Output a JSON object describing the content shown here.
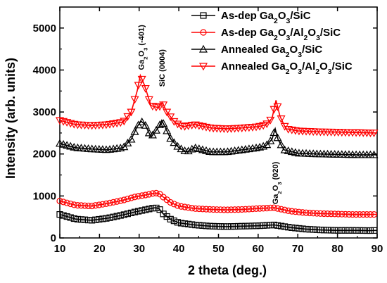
{
  "chart_data": {
    "type": "line",
    "xlabel": "2 theta (deg.)",
    "ylabel": "Intensity (arb. units)",
    "xlim": [
      10,
      90
    ],
    "ylim": [
      0,
      5500
    ],
    "xticks": [
      "10",
      "20",
      "30",
      "40",
      "50",
      "60",
      "70",
      "80",
      "90"
    ],
    "yticks": [
      "0",
      "1000",
      "2000",
      "3000",
      "4000",
      "5000"
    ],
    "grid": false,
    "legend_position": "top-right",
    "colors": {
      "black": "#000000",
      "red": "#ff0000"
    },
    "series": [
      {
        "name": "As-dep Ga2O3/SiC",
        "legend_parts": [
          [
            "As-dep Ga",
            ""
          ],
          [
            "2",
            "sub"
          ],
          [
            "O",
            ""
          ],
          [
            "3",
            "sub"
          ],
          [
            "/SiC",
            ""
          ]
        ],
        "color": "#000000",
        "marker": "square",
        "x": [
          10,
          14,
          18,
          22,
          26,
          29,
          32,
          34,
          35,
          36,
          38,
          40,
          44,
          48,
          52,
          56,
          60,
          64,
          68,
          72,
          76,
          80,
          84,
          88,
          90
        ],
        "y": [
          560,
          450,
          420,
          470,
          550,
          620,
          680,
          720,
          700,
          580,
          440,
          360,
          310,
          280,
          270,
          280,
          290,
          310,
          250,
          210,
          190,
          180,
          180,
          175,
          180
        ]
      },
      {
        "name": "As-dep Ga2O3/Al2O3/SiC",
        "legend_parts": [
          [
            "As-dep Ga",
            ""
          ],
          [
            "2",
            "sub"
          ],
          [
            "O",
            ""
          ],
          [
            "3",
            "sub"
          ],
          [
            "/Al",
            ""
          ],
          [
            "2",
            "sub"
          ],
          [
            "O",
            ""
          ],
          [
            "3",
            "sub"
          ],
          [
            "/SiC",
            ""
          ]
        ],
        "color": "#ff0000",
        "marker": "circle",
        "x": [
          10,
          14,
          18,
          22,
          26,
          29,
          32,
          34,
          35,
          36,
          38,
          40,
          44,
          48,
          52,
          56,
          60,
          64,
          68,
          72,
          76,
          80,
          84,
          88,
          90
        ],
        "y": [
          880,
          780,
          760,
          820,
          900,
          980,
          1030,
          1070,
          1060,
          980,
          840,
          760,
          700,
          680,
          670,
          680,
          700,
          720,
          640,
          600,
          580,
          570,
          560,
          560,
          560
        ]
      },
      {
        "name": "Annealed Ga2O3/SiC",
        "legend_parts": [
          [
            "Annealed Ga",
            ""
          ],
          [
            "2",
            "sub"
          ],
          [
            "O",
            ""
          ],
          [
            "3",
            "sub"
          ],
          [
            "/SiC",
            ""
          ]
        ],
        "color": "#000000",
        "marker": "triangle-up",
        "x": [
          10,
          14,
          18,
          22,
          26,
          28,
          29.5,
          30.5,
          31.5,
          33,
          35,
          35.7,
          36.5,
          38,
          40,
          42,
          44,
          48,
          52,
          56,
          60,
          62,
          63.5,
          64.3,
          65,
          66.5,
          70,
          75,
          80,
          85,
          90
        ],
        "y": [
          2250,
          2150,
          2120,
          2100,
          2150,
          2350,
          2650,
          2780,
          2700,
          2400,
          2650,
          2800,
          2650,
          2350,
          2150,
          2050,
          2150,
          2050,
          2050,
          2100,
          2150,
          2200,
          2350,
          2600,
          2350,
          2100,
          2020,
          2000,
          1990,
          1980,
          1980
        ]
      },
      {
        "name": "Annealed Ga2O3/Al2O3/SiC",
        "legend_parts": [
          [
            "Annealed Ga",
            ""
          ],
          [
            "2",
            "sub"
          ],
          [
            "O",
            ""
          ],
          [
            "3",
            "sub"
          ],
          [
            "/Al",
            ""
          ],
          [
            "2",
            "sub"
          ],
          [
            "O",
            ""
          ],
          [
            "3",
            "sub"
          ],
          [
            "/SiC",
            ""
          ]
        ],
        "color": "#ff0000",
        "marker": "triangle-down",
        "x": [
          10,
          14,
          18,
          22,
          26,
          28,
          29.5,
          30.3,
          31.3,
          33,
          35,
          35.8,
          37,
          39,
          41,
          44,
          48,
          52,
          56,
          60,
          62,
          63.5,
          64.5,
          65.5,
          67,
          70,
          75,
          80,
          85,
          90
        ],
        "y": [
          2800,
          2700,
          2680,
          2700,
          2760,
          3000,
          3500,
          3870,
          3650,
          3150,
          3100,
          3230,
          3000,
          2750,
          2650,
          2700,
          2620,
          2600,
          2620,
          2650,
          2700,
          2850,
          3280,
          2900,
          2600,
          2550,
          2530,
          2520,
          2510,
          2500
        ]
      }
    ],
    "annotations": [
      {
        "parts": [
          [
            "Ga",
            ""
          ],
          [
            "2",
            "sub"
          ],
          [
            "O",
            ""
          ],
          [
            "3",
            "sub"
          ],
          [
            " (-401)",
            ""
          ]
        ],
        "x": 30.5,
        "y": 4000
      },
      {
        "parts": [
          [
            "SiC (0004)",
            ""
          ]
        ],
        "x": 35.7,
        "y": 3600
      },
      {
        "parts": [
          [
            "Ga",
            ""
          ],
          [
            "2",
            "sub"
          ],
          [
            "O",
            ""
          ],
          [
            "3",
            "sub"
          ],
          [
            " (020)",
            ""
          ]
        ],
        "x": 64.3,
        "y": 800
      }
    ]
  }
}
